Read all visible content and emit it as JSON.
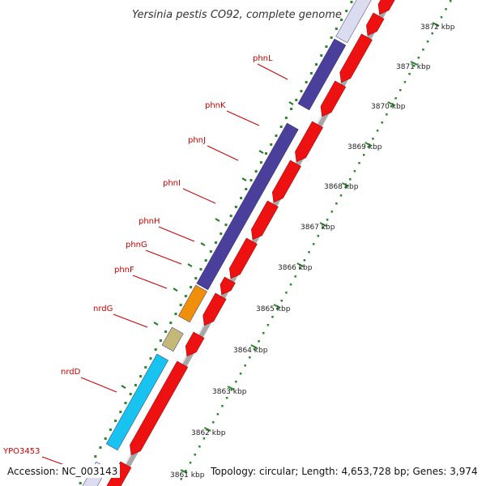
{
  "title": "Yersinia pestis CO92, complete genome",
  "footer": {
    "accession": "Accession: NC_003143",
    "summary": "Topology: circular; Length: 4,653,728 bp; Genes: 3,974"
  },
  "colors": {
    "forward_gene": "#4a3f9a",
    "reverse_gene": "#ee1111",
    "orange_gene": "#f0900a",
    "tan_gene": "#c4b878",
    "cyan_gene": "#19c3f0",
    "lavender_gene": "#dcdcf0",
    "backbone": "#999999",
    "gc_ticks": "#2a8a2a",
    "label_text": "#cc0000"
  },
  "genes": [
    {
      "name": "phnL"
    },
    {
      "name": "phnK"
    },
    {
      "name": "phnJ"
    },
    {
      "name": "phnI"
    },
    {
      "name": "phnH"
    },
    {
      "name": "phnG"
    },
    {
      "name": "phnF"
    },
    {
      "name": "nrdG"
    },
    {
      "name": "nrdD"
    },
    {
      "name": "YPO3453"
    }
  ],
  "scale": {
    "unit": "kbp",
    "ticks": [
      "3872 kbp",
      "3871 kbp",
      "3870 kbp",
      "3869 kbp",
      "3868 kbp",
      "3867 kbp",
      "3866 kbp",
      "3865 kbp",
      "3864 kbp",
      "3863 kbp",
      "3862 kbp",
      "3861 kbp"
    ]
  }
}
